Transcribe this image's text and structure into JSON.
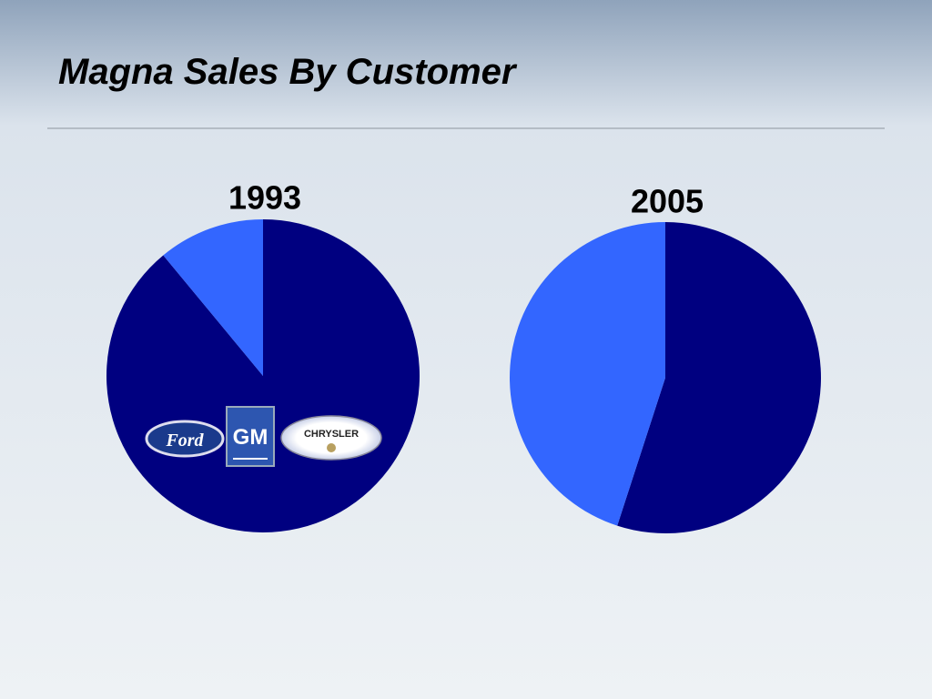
{
  "title": "Magna Sales By Customer",
  "logos": [
    "Ford",
    "GM",
    "CHRYSLER"
  ],
  "chart_data": [
    {
      "type": "pie",
      "title": "1993",
      "values": [
        89,
        11
      ],
      "colors": [
        "#000080",
        "#3366ff"
      ]
    },
    {
      "type": "pie",
      "title": "2005",
      "values": [
        55,
        45
      ],
      "colors": [
        "#000080",
        "#3366ff"
      ]
    }
  ]
}
